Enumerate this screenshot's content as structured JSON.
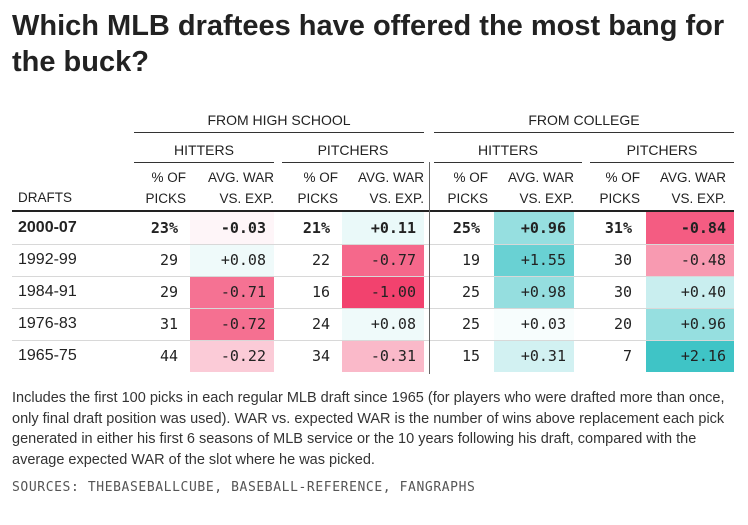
{
  "title": "Which MLB draftees have offered the most bang for the buck?",
  "group_headers": [
    "FROM HIGH SCHOOL",
    "FROM COLLEGE"
  ],
  "sub_headers": [
    "HITTERS",
    "PITCHERS",
    "HITTERS",
    "PITCHERS"
  ],
  "column_headers": {
    "drafts": "DRAFTS",
    "pct_line1": "% OF",
    "pct_line2": "PICKS",
    "war_line1": "AVG. WAR",
    "war_line2": "VS. EXP."
  },
  "footnote": "Includes the first 100 picks in each regular MLB draft since 1965 (for players who were drafted more than once, only final draft position was used). WAR vs. expected WAR is the number of wins above replacement each pick generated in either his first 6 seasons of MLB service or the 10 years following his draft, compared with the average expected WAR of the slot where he was picked.",
  "sources": "SOURCES: THEBASEBALLCUBE, BASEBALL-REFERENCE, FANGRAPHS",
  "colors": {
    "positive_max": "#3fc4c6",
    "negative_max": "#f2426e",
    "neutral": "#ffffff",
    "rule": "#333333"
  },
  "chart_data": {
    "type": "table",
    "columns": [
      "DRAFTS",
      "HS HITTERS % OF PICKS",
      "HS HITTERS AVG. WAR VS. EXP.",
      "HS PITCHERS % OF PICKS",
      "HS PITCHERS AVG. WAR VS. EXP.",
      "COLLEGE HITTERS % OF PICKS",
      "COLLEGE HITTERS AVG. WAR VS. EXP.",
      "COLLEGE PITCHERS % OF PICKS",
      "COLLEGE PITCHERS AVG. WAR VS. EXP."
    ],
    "rows": [
      {
        "drafts": "2000-07",
        "bold": true,
        "hs_hit_pct": "23%",
        "hs_hit_war": "-0.03",
        "hs_pit_pct": "21%",
        "hs_pit_war": "+0.11",
        "col_hit_pct": "25%",
        "col_hit_war": "+0.96",
        "col_pit_pct": "31%",
        "col_pit_war": "-0.84"
      },
      {
        "drafts": "1992-99",
        "bold": false,
        "hs_hit_pct": "29",
        "hs_hit_war": "+0.08",
        "hs_pit_pct": "22",
        "hs_pit_war": "-0.77",
        "col_hit_pct": "19",
        "col_hit_war": "+1.55",
        "col_pit_pct": "30",
        "col_pit_war": "-0.48"
      },
      {
        "drafts": "1984-91",
        "bold": false,
        "hs_hit_pct": "29",
        "hs_hit_war": "-0.71",
        "hs_pit_pct": "16",
        "hs_pit_war": "-1.00",
        "col_hit_pct": "25",
        "col_hit_war": "+0.98",
        "col_pit_pct": "30",
        "col_pit_war": "+0.40"
      },
      {
        "drafts": "1976-83",
        "bold": false,
        "hs_hit_pct": "31",
        "hs_hit_war": "-0.72",
        "hs_pit_pct": "24",
        "hs_pit_war": "+0.08",
        "col_hit_pct": "25",
        "col_hit_war": "+0.03",
        "col_pit_pct": "20",
        "col_pit_war": "+0.96"
      },
      {
        "drafts": "1965-75",
        "bold": false,
        "hs_hit_pct": "44",
        "hs_hit_war": "-0.22",
        "hs_pit_pct": "34",
        "hs_pit_war": "-0.31",
        "col_hit_pct": "15",
        "col_hit_war": "+0.31",
        "col_pit_pct": "7",
        "col_pit_war": "+2.16"
      }
    ]
  }
}
